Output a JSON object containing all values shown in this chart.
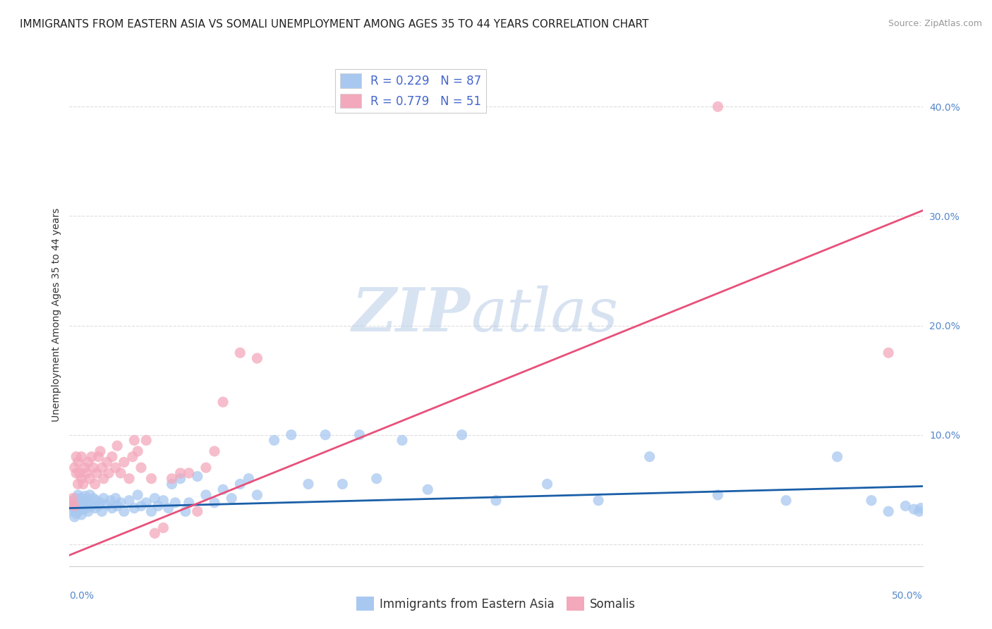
{
  "title": "IMMIGRANTS FROM EASTERN ASIA VS SOMALI UNEMPLOYMENT AMONG AGES 35 TO 44 YEARS CORRELATION CHART",
  "source": "Source: ZipAtlas.com",
  "ylabel": "Unemployment Among Ages 35 to 44 years",
  "xlabel_blue": "Immigrants from Eastern Asia",
  "xlabel_pink": "Somalis",
  "xlim": [
    0,
    0.5
  ],
  "ylim": [
    -0.02,
    0.44
  ],
  "ytick_positions": [
    0.0,
    0.1,
    0.2,
    0.3,
    0.4
  ],
  "ytick_labels": [
    "",
    "10.0%",
    "20.0%",
    "30.0%",
    "40.0%"
  ],
  "blue_R": 0.229,
  "blue_N": 87,
  "pink_R": 0.779,
  "pink_N": 51,
  "blue_color": "#a8c8f0",
  "pink_color": "#f4a8bc",
  "blue_line_color": "#1a5fa8",
  "pink_line_color": "#e8507a",
  "watermark_zip": "ZIP",
  "watermark_atlas": "atlas",
  "blue_scatter_x": [
    0.001,
    0.002,
    0.002,
    0.003,
    0.003,
    0.003,
    0.004,
    0.004,
    0.004,
    0.005,
    0.005,
    0.005,
    0.006,
    0.006,
    0.007,
    0.007,
    0.007,
    0.008,
    0.008,
    0.009,
    0.009,
    0.01,
    0.01,
    0.011,
    0.011,
    0.012,
    0.013,
    0.014,
    0.015,
    0.016,
    0.017,
    0.018,
    0.019,
    0.02,
    0.022,
    0.024,
    0.025,
    0.027,
    0.028,
    0.03,
    0.032,
    0.035,
    0.038,
    0.04,
    0.042,
    0.045,
    0.048,
    0.05,
    0.052,
    0.055,
    0.058,
    0.06,
    0.062,
    0.065,
    0.068,
    0.07,
    0.075,
    0.08,
    0.085,
    0.09,
    0.095,
    0.1,
    0.105,
    0.11,
    0.12,
    0.13,
    0.14,
    0.15,
    0.16,
    0.17,
    0.18,
    0.195,
    0.21,
    0.23,
    0.25,
    0.28,
    0.31,
    0.34,
    0.38,
    0.42,
    0.45,
    0.47,
    0.48,
    0.49,
    0.495,
    0.498,
    0.499
  ],
  "blue_scatter_y": [
    0.035,
    0.04,
    0.03,
    0.038,
    0.032,
    0.025,
    0.042,
    0.035,
    0.028,
    0.045,
    0.038,
    0.03,
    0.04,
    0.033,
    0.042,
    0.035,
    0.027,
    0.038,
    0.032,
    0.044,
    0.036,
    0.04,
    0.033,
    0.038,
    0.03,
    0.045,
    0.035,
    0.042,
    0.033,
    0.04,
    0.035,
    0.038,
    0.03,
    0.042,
    0.036,
    0.04,
    0.033,
    0.042,
    0.035,
    0.038,
    0.03,
    0.04,
    0.033,
    0.045,
    0.035,
    0.038,
    0.03,
    0.042,
    0.035,
    0.04,
    0.033,
    0.055,
    0.038,
    0.06,
    0.03,
    0.038,
    0.062,
    0.045,
    0.038,
    0.05,
    0.042,
    0.055,
    0.06,
    0.045,
    0.095,
    0.1,
    0.055,
    0.1,
    0.055,
    0.1,
    0.06,
    0.095,
    0.05,
    0.1,
    0.04,
    0.055,
    0.04,
    0.08,
    0.045,
    0.04,
    0.08,
    0.04,
    0.03,
    0.035,
    0.032,
    0.03,
    0.033
  ],
  "pink_scatter_x": [
    0.001,
    0.002,
    0.003,
    0.003,
    0.004,
    0.004,
    0.005,
    0.005,
    0.006,
    0.007,
    0.007,
    0.008,
    0.009,
    0.01,
    0.011,
    0.012,
    0.013,
    0.014,
    0.015,
    0.016,
    0.017,
    0.018,
    0.019,
    0.02,
    0.022,
    0.023,
    0.025,
    0.027,
    0.028,
    0.03,
    0.032,
    0.035,
    0.037,
    0.038,
    0.04,
    0.042,
    0.045,
    0.048,
    0.05,
    0.055,
    0.06,
    0.065,
    0.07,
    0.075,
    0.08,
    0.085,
    0.09,
    0.1,
    0.11,
    0.38,
    0.48
  ],
  "pink_scatter_y": [
    0.038,
    0.042,
    0.07,
    0.035,
    0.08,
    0.065,
    0.055,
    0.075,
    0.065,
    0.08,
    0.06,
    0.055,
    0.07,
    0.065,
    0.075,
    0.06,
    0.08,
    0.07,
    0.055,
    0.065,
    0.08,
    0.085,
    0.07,
    0.06,
    0.075,
    0.065,
    0.08,
    0.07,
    0.09,
    0.065,
    0.075,
    0.06,
    0.08,
    0.095,
    0.085,
    0.07,
    0.095,
    0.06,
    0.01,
    0.015,
    0.06,
    0.065,
    0.065,
    0.03,
    0.07,
    0.085,
    0.13,
    0.175,
    0.17,
    0.4,
    0.175
  ],
  "blue_trend_x": [
    0.0,
    0.5
  ],
  "blue_trend_y": [
    0.033,
    0.053
  ],
  "pink_trend_x": [
    0.0,
    0.5
  ],
  "pink_trend_y": [
    -0.01,
    0.305
  ],
  "background_color": "#ffffff",
  "grid_color": "#dddddd",
  "title_fontsize": 11,
  "axis_label_fontsize": 10,
  "tick_fontsize": 10,
  "legend_fontsize": 12,
  "source_fontsize": 9,
  "tick_color": "#5588cc"
}
